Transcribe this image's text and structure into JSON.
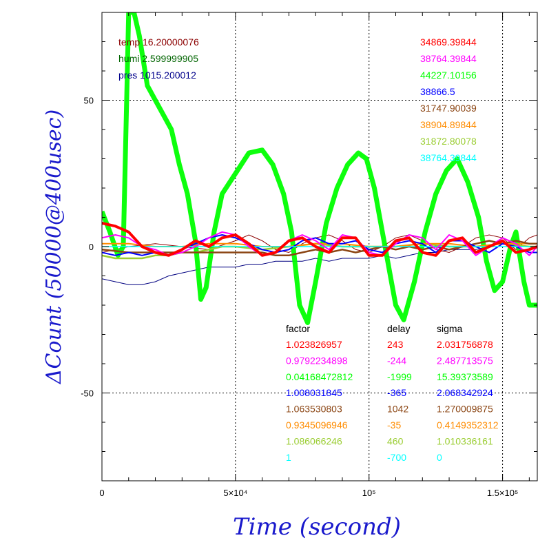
{
  "chart_data": {
    "type": "line",
    "xlabel": "Time (second)",
    "ylabel": "ΔCount (50000@400usec)",
    "xlim": [
      0,
      163000
    ],
    "ylim": [
      -80,
      80
    ],
    "grid": "dotted",
    "x_ticks": [
      {
        "value": 0,
        "label": "0"
      },
      {
        "value": 50000,
        "label": "5×10⁴"
      },
      {
        "value": 100000,
        "label": "10⁵"
      },
      {
        "value": 150000,
        "label": "1.5×10⁵"
      }
    ],
    "y_ticks": [
      {
        "value": 50,
        "label": "50"
      },
      {
        "value": 0,
        "label": "0"
      },
      {
        "value": -50,
        "label": "-50"
      }
    ],
    "env_text": [
      {
        "text": "temp 16.20000076",
        "color": "#8b0000"
      },
      {
        "text": "humi 2.599999905",
        "color": "#006400"
      },
      {
        "text": "pres 1015.200012",
        "color": "#00008b"
      }
    ],
    "series": [
      {
        "mean": "34869.39844",
        "color": "#ff0000",
        "factor": "1.023826957",
        "delay": "243",
        "sigma": "2.031756878",
        "points": [
          [
            0,
            8
          ],
          [
            5000,
            7
          ],
          [
            10000,
            5
          ],
          [
            15000,
            0
          ],
          [
            20000,
            -2
          ],
          [
            25000,
            -3
          ],
          [
            30000,
            -1
          ],
          [
            35000,
            2
          ],
          [
            40000,
            0
          ],
          [
            45000,
            3
          ],
          [
            50000,
            4
          ],
          [
            55000,
            1
          ],
          [
            60000,
            -3
          ],
          [
            65000,
            -2
          ],
          [
            70000,
            2
          ],
          [
            75000,
            3
          ],
          [
            80000,
            0
          ],
          [
            85000,
            -2
          ],
          [
            90000,
            3
          ],
          [
            95000,
            3
          ],
          [
            100000,
            -3
          ],
          [
            105000,
            -3
          ],
          [
            110000,
            2
          ],
          [
            115000,
            3
          ],
          [
            120000,
            -2
          ],
          [
            125000,
            -3
          ],
          [
            130000,
            2
          ],
          [
            135000,
            3
          ],
          [
            140000,
            -2
          ],
          [
            145000,
            0
          ],
          [
            150000,
            2
          ],
          [
            155000,
            -2
          ],
          [
            160000,
            -1
          ],
          [
            163000,
            0
          ]
        ]
      },
      {
        "mean": "38764.39844",
        "color": "#ff00ff",
        "factor": "0.9792234898",
        "delay": "-244",
        "sigma": "2.487713575",
        "points": [
          [
            0,
            3
          ],
          [
            5000,
            4
          ],
          [
            10000,
            3
          ],
          [
            15000,
            0
          ],
          [
            20000,
            -1
          ],
          [
            25000,
            -3
          ],
          [
            30000,
            -2
          ],
          [
            35000,
            0
          ],
          [
            40000,
            3
          ],
          [
            45000,
            5
          ],
          [
            50000,
            4
          ],
          [
            55000,
            0
          ],
          [
            60000,
            -3
          ],
          [
            65000,
            -2
          ],
          [
            70000,
            2
          ],
          [
            75000,
            4
          ],
          [
            80000,
            2
          ],
          [
            85000,
            -1
          ],
          [
            90000,
            4
          ],
          [
            95000,
            3
          ],
          [
            100000,
            -2
          ],
          [
            105000,
            -3
          ],
          [
            110000,
            1
          ],
          [
            115000,
            4
          ],
          [
            120000,
            3
          ],
          [
            125000,
            -1
          ],
          [
            130000,
            4
          ],
          [
            135000,
            2
          ],
          [
            140000,
            -3
          ],
          [
            145000,
            0
          ],
          [
            150000,
            3
          ],
          [
            155000,
            1
          ],
          [
            160000,
            -3
          ],
          [
            163000,
            0
          ]
        ]
      },
      {
        "mean": "44227.10156",
        "color": "#00ff00",
        "factor": "0.04168472812",
        "delay": "-1999",
        "sigma": "15.39373589",
        "points": [
          [
            0,
            12
          ],
          [
            3000,
            5
          ],
          [
            6000,
            -3
          ],
          [
            8000,
            0
          ],
          [
            10000,
            80
          ],
          [
            12000,
            80
          ],
          [
            14000,
            72
          ],
          [
            17000,
            55
          ],
          [
            20000,
            50
          ],
          [
            23000,
            45
          ],
          [
            26000,
            40
          ],
          [
            29000,
            28
          ],
          [
            32000,
            18
          ],
          [
            35000,
            2
          ],
          [
            37000,
            -18
          ],
          [
            39000,
            -14
          ],
          [
            42000,
            5
          ],
          [
            45000,
            18
          ],
          [
            50000,
            25
          ],
          [
            55000,
            32
          ],
          [
            60000,
            33
          ],
          [
            64000,
            28
          ],
          [
            68000,
            18
          ],
          [
            71000,
            5
          ],
          [
            74000,
            -20
          ],
          [
            77000,
            -26
          ],
          [
            80000,
            -12
          ],
          [
            84000,
            8
          ],
          [
            88000,
            20
          ],
          [
            92000,
            28
          ],
          [
            96000,
            32
          ],
          [
            99000,
            30
          ],
          [
            102000,
            20
          ],
          [
            105000,
            5
          ],
          [
            108000,
            -10
          ],
          [
            110000,
            -20
          ],
          [
            113000,
            -25
          ],
          [
            117000,
            -12
          ],
          [
            121000,
            5
          ],
          [
            125000,
            18
          ],
          [
            129000,
            26
          ],
          [
            133000,
            30
          ],
          [
            137000,
            22
          ],
          [
            141000,
            10
          ],
          [
            144000,
            -5
          ],
          [
            147000,
            -15
          ],
          [
            150000,
            -12
          ],
          [
            153000,
            0
          ],
          [
            155000,
            5
          ],
          [
            158000,
            -12
          ],
          [
            160000,
            -20
          ],
          [
            163000,
            -20
          ]
        ]
      },
      {
        "mean": "38866.5",
        "color": "#0000ff",
        "factor": "1.008031845",
        "delay": "-365",
        "sigma": "2.068342924",
        "points": [
          [
            0,
            -2
          ],
          [
            5000,
            -3
          ],
          [
            10000,
            -2
          ],
          [
            15000,
            -3
          ],
          [
            20000,
            -2
          ],
          [
            25000,
            -3
          ],
          [
            30000,
            -1
          ],
          [
            35000,
            1
          ],
          [
            40000,
            3
          ],
          [
            45000,
            4
          ],
          [
            50000,
            3
          ],
          [
            55000,
            1
          ],
          [
            60000,
            -1
          ],
          [
            65000,
            -2
          ],
          [
            70000,
            -1
          ],
          [
            75000,
            2
          ],
          [
            80000,
            3
          ],
          [
            85000,
            1
          ],
          [
            90000,
            1
          ],
          [
            95000,
            2
          ],
          [
            100000,
            -1
          ],
          [
            105000,
            -2
          ],
          [
            110000,
            1
          ],
          [
            115000,
            2
          ],
          [
            120000,
            1
          ],
          [
            125000,
            -2
          ],
          [
            130000,
            2
          ],
          [
            135000,
            2
          ],
          [
            140000,
            0
          ],
          [
            145000,
            -2
          ],
          [
            150000,
            1
          ],
          [
            155000,
            0
          ],
          [
            160000,
            -2
          ],
          [
            163000,
            -2
          ]
        ]
      },
      {
        "mean": "31747.90039",
        "color": "#8b4513",
        "factor": "1.063530803",
        "delay": "1042",
        "sigma": "1.270009875",
        "points": [
          [
            0,
            -1
          ],
          [
            10000,
            -2
          ],
          [
            20000,
            -2
          ],
          [
            30000,
            -2
          ],
          [
            40000,
            -2
          ],
          [
            50000,
            -2
          ],
          [
            55000,
            -2
          ],
          [
            60000,
            -2
          ],
          [
            65000,
            -3
          ],
          [
            70000,
            -3
          ],
          [
            75000,
            -2
          ],
          [
            80000,
            -1
          ],
          [
            85000,
            -2
          ],
          [
            90000,
            -1
          ],
          [
            95000,
            -2
          ],
          [
            100000,
            -1
          ],
          [
            105000,
            0
          ],
          [
            110000,
            -1
          ],
          [
            115000,
            0
          ],
          [
            120000,
            -1
          ],
          [
            125000,
            0
          ],
          [
            130000,
            -1
          ],
          [
            135000,
            0
          ],
          [
            140000,
            1
          ],
          [
            145000,
            2
          ],
          [
            150000,
            1
          ],
          [
            155000,
            2
          ],
          [
            160000,
            1
          ],
          [
            163000,
            1
          ]
        ]
      },
      {
        "mean": "38904.89844",
        "color": "#ff8c00",
        "factor": "0.9345096946",
        "delay": "-35",
        "sigma": "0.4149352312",
        "points": [
          [
            0,
            1
          ],
          [
            10000,
            1
          ],
          [
            20000,
            0
          ],
          [
            30000,
            0
          ],
          [
            40000,
            1
          ],
          [
            50000,
            1
          ],
          [
            60000,
            0
          ],
          [
            70000,
            0
          ],
          [
            80000,
            1
          ],
          [
            90000,
            1
          ],
          [
            100000,
            0
          ],
          [
            110000,
            0
          ],
          [
            120000,
            1
          ],
          [
            130000,
            1
          ],
          [
            140000,
            0
          ],
          [
            150000,
            1
          ],
          [
            160000,
            1
          ],
          [
            163000,
            1
          ]
        ]
      },
      {
        "mean": "31872.80078",
        "color": "#9acd32",
        "factor": "1.086066246",
        "delay": "460",
        "sigma": "1.010336161",
        "points": [
          [
            0,
            -3
          ],
          [
            5000,
            -4
          ],
          [
            10000,
            -4
          ],
          [
            15000,
            -4
          ],
          [
            20000,
            -3
          ],
          [
            25000,
            -3
          ],
          [
            30000,
            -2
          ],
          [
            35000,
            -2
          ],
          [
            40000,
            -1
          ],
          [
            45000,
            0
          ],
          [
            50000,
            0
          ],
          [
            60000,
            -1
          ],
          [
            70000,
            0
          ],
          [
            80000,
            1
          ],
          [
            90000,
            0
          ],
          [
            100000,
            0
          ],
          [
            110000,
            0
          ],
          [
            120000,
            1
          ],
          [
            130000,
            0
          ],
          [
            140000,
            0
          ],
          [
            150000,
            1
          ],
          [
            160000,
            0
          ],
          [
            163000,
            0
          ]
        ]
      },
      {
        "mean": "38764.39844",
        "color": "#00ffff",
        "factor": "1",
        "delay": "-700",
        "sigma": "0",
        "points": [
          [
            0,
            0
          ],
          [
            163000,
            0
          ]
        ]
      }
    ],
    "extra_traces": [
      {
        "color": "#000080",
        "points": [
          [
            0,
            -11
          ],
          [
            5000,
            -12
          ],
          [
            10000,
            -13
          ],
          [
            15000,
            -13
          ],
          [
            20000,
            -12
          ],
          [
            25000,
            -10
          ],
          [
            30000,
            -9
          ],
          [
            35000,
            -8
          ],
          [
            40000,
            -7
          ],
          [
            45000,
            -7
          ],
          [
            50000,
            -7
          ],
          [
            55000,
            -6
          ],
          [
            60000,
            -6
          ],
          [
            65000,
            -5
          ],
          [
            70000,
            -5
          ],
          [
            75000,
            -5
          ],
          [
            80000,
            -4
          ],
          [
            85000,
            -5
          ],
          [
            90000,
            -4
          ],
          [
            95000,
            -4
          ],
          [
            100000,
            -4
          ],
          [
            105000,
            -3
          ],
          [
            110000,
            -4
          ],
          [
            115000,
            -3
          ],
          [
            120000,
            -2
          ],
          [
            125000,
            -2
          ],
          [
            130000,
            -1
          ],
          [
            135000,
            -1
          ],
          [
            140000,
            -1
          ],
          [
            145000,
            0
          ],
          [
            150000,
            0
          ],
          [
            155000,
            0
          ],
          [
            160000,
            0
          ],
          [
            163000,
            0
          ]
        ]
      },
      {
        "color": "#8b0000",
        "points": [
          [
            0,
            -2
          ],
          [
            10000,
            0
          ],
          [
            20000,
            1
          ],
          [
            30000,
            0
          ],
          [
            40000,
            -1
          ],
          [
            50000,
            2
          ],
          [
            55000,
            4
          ],
          [
            60000,
            2
          ],
          [
            65000,
            -1
          ],
          [
            70000,
            -2
          ],
          [
            75000,
            1
          ],
          [
            80000,
            3
          ],
          [
            85000,
            4
          ],
          [
            90000,
            2
          ],
          [
            95000,
            -1
          ],
          [
            100000,
            -2
          ],
          [
            105000,
            0
          ],
          [
            110000,
            3
          ],
          [
            115000,
            4
          ],
          [
            120000,
            2
          ],
          [
            125000,
            -1
          ],
          [
            130000,
            -2
          ],
          [
            135000,
            0
          ],
          [
            140000,
            3
          ],
          [
            145000,
            4
          ],
          [
            150000,
            3
          ],
          [
            155000,
            -1
          ],
          [
            160000,
            3
          ],
          [
            163000,
            4
          ]
        ]
      }
    ],
    "table_headers": {
      "factor": "factor",
      "delay": "delay",
      "sigma": "sigma"
    }
  }
}
